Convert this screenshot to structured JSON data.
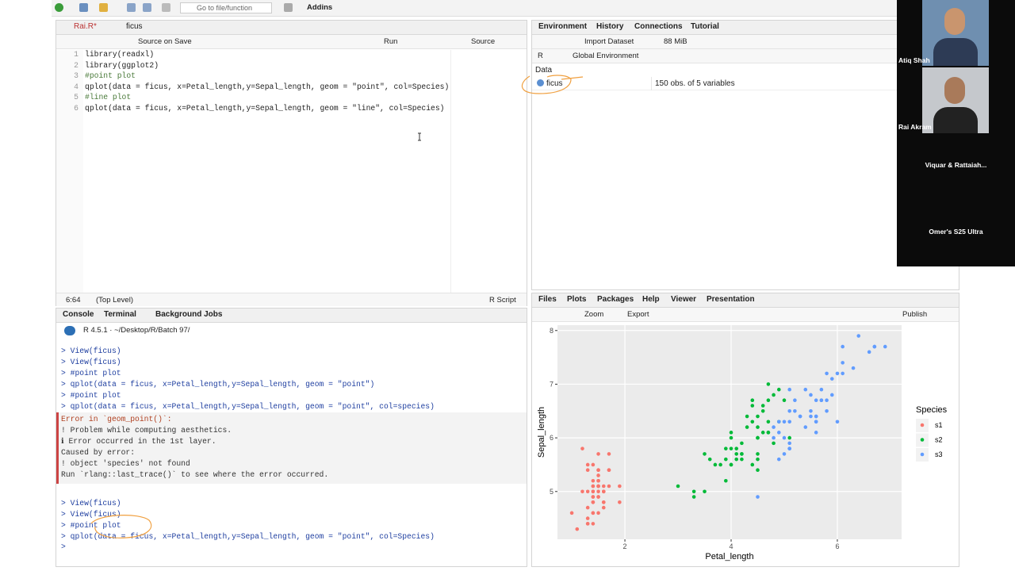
{
  "toolbar": {
    "goto": "Go to file/function",
    "addins": "Addins"
  },
  "editor": {
    "tabs": [
      "Rai.R*",
      "ficus"
    ],
    "source_on_save": "Source on Save",
    "run": "Run",
    "source": "Source",
    "line_numbers": [
      1,
      2,
      3,
      4,
      5,
      6
    ],
    "lines": [
      "library(readxl)",
      "library(ggplot2)",
      "#point plot",
      "qplot(data = ficus, x=Petal_length,y=Sepal_length, geom = \"point\", col=Species)",
      "#line plot",
      "qplot(data = ficus, x=Petal_length,y=Sepal_length, geom = \"line\", col=Species)"
    ],
    "status": {
      "position": "6:64",
      "level": "(Top Level)",
      "type": "R Script"
    }
  },
  "environment": {
    "tabs": [
      "Environment",
      "History",
      "Connections",
      "Tutorial"
    ],
    "import": "Import Dataset",
    "memory": "88 MiB",
    "language": "R",
    "scope": "Global Environment",
    "section": "Data",
    "rows": [
      {
        "name": "ficus",
        "description": "150 obs. of 5 variables"
      }
    ]
  },
  "console": {
    "tabs": [
      "Console",
      "Terminal",
      "Background Jobs"
    ],
    "path": "R 4.5.1 · ~/Desktop/R/Batch 97/",
    "history": [
      "> View(ficus)",
      "> View(ficus)",
      "> #point plot",
      "> qplot(data = ficus, x=Petal_length,y=Sepal_length, geom = \"point\")",
      "> #point plot",
      "> qplot(data = ficus, x=Petal_length,y=Sepal_length, geom = \"point\", col=species)"
    ],
    "error": [
      "Error in `geom_point()`:",
      "! Problem while computing aesthetics.",
      "ℹ Error occurred in the 1st layer.",
      "Caused by error:",
      "! object 'species' not found",
      "Run `rlang::last_trace()` to see where the error occurred."
    ],
    "recent": [
      "> View(ficus)",
      "> View(ficus)",
      "> #point plot",
      "> qplot(data = ficus, x=Petal_length,y=Sepal_length, geom = \"point\", col=Species)",
      ">"
    ]
  },
  "viewer": {
    "tabs": [
      "Files",
      "Plots",
      "Packages",
      "Help",
      "Viewer",
      "Presentation"
    ],
    "zoom": "Zoom",
    "export": "Export",
    "publish": "Publish"
  },
  "participants": [
    "Atiq Shah",
    "Rai Akram",
    "Viquar & Rattaiah...",
    "Omer's S25 Ultra"
  ],
  "chart_data": {
    "type": "scatter",
    "x_label": "Petal_length",
    "y_label": "Sepal_length",
    "legend_title": "Species",
    "grid": true,
    "xlim": [
      0.73,
      7.21
    ],
    "ylim": [
      4.11,
      8.1
    ],
    "xticks": [
      2,
      4,
      6
    ],
    "yticks": [
      5,
      6,
      7,
      8
    ],
    "series": [
      {
        "name": "s1",
        "color": "#F8766D",
        "x": [
          1.4,
          1.4,
          1.3,
          1.5,
          1.4,
          1.7,
          1.4,
          1.5,
          1.4,
          1.5,
          1.5,
          1.6,
          1.4,
          1.1,
          1.2,
          1.5,
          1.3,
          1.4,
          1.7,
          1.5,
          1.7,
          1.5,
          1.0,
          1.7,
          1.9,
          1.6,
          1.6,
          1.5,
          1.4,
          1.6,
          1.6,
          1.5,
          1.5,
          1.4,
          1.5,
          1.2,
          1.3,
          1.4,
          1.3,
          1.5,
          1.3,
          1.3,
          1.3,
          1.6,
          1.9,
          1.4,
          1.6,
          1.4,
          1.5,
          1.4
        ],
        "y": [
          5.1,
          4.9,
          4.7,
          4.6,
          5.0,
          5.4,
          4.6,
          5.0,
          4.4,
          4.9,
          5.4,
          4.8,
          4.8,
          4.3,
          5.8,
          5.7,
          5.4,
          5.1,
          5.7,
          5.1,
          5.4,
          5.1,
          4.6,
          5.1,
          4.8,
          5.0,
          5.0,
          5.2,
          5.2,
          4.7,
          4.8,
          5.4,
          5.2,
          5.5,
          4.9,
          5.0,
          5.5,
          4.9,
          4.4,
          5.1,
          5.0,
          4.5,
          4.4,
          5.0,
          5.1,
          4.8,
          5.1,
          4.6,
          5.3,
          5.0
        ]
      },
      {
        "name": "s2",
        "color": "#00BA38",
        "x": [
          4.7,
          4.5,
          4.9,
          4.0,
          4.6,
          4.5,
          4.7,
          3.3,
          4.6,
          3.9,
          3.5,
          4.2,
          4.0,
          4.7,
          3.6,
          4.4,
          4.5,
          4.1,
          4.5,
          3.9,
          4.8,
          4.0,
          4.9,
          4.7,
          4.3,
          4.4,
          4.8,
          5.0,
          4.5,
          3.5,
          3.8,
          3.7,
          3.9,
          5.1,
          4.5,
          4.5,
          4.7,
          4.4,
          4.1,
          4.0,
          4.4,
          4.6,
          4.0,
          3.3,
          4.2,
          4.2,
          4.2,
          4.3,
          3.0,
          4.1
        ],
        "y": [
          7.0,
          6.4,
          6.9,
          5.5,
          6.5,
          5.7,
          6.3,
          4.9,
          6.6,
          5.2,
          5.0,
          5.9,
          6.0,
          6.1,
          5.6,
          6.7,
          5.6,
          5.8,
          6.2,
          5.6,
          5.9,
          6.1,
          6.3,
          6.1,
          6.4,
          6.6,
          6.8,
          6.7,
          6.0,
          5.7,
          5.5,
          5.5,
          5.8,
          6.0,
          5.4,
          6.0,
          6.7,
          6.3,
          5.6,
          5.5,
          5.5,
          6.1,
          5.8,
          5.0,
          5.6,
          5.7,
          5.7,
          6.2,
          5.1,
          5.7
        ]
      },
      {
        "name": "s3",
        "color": "#619CFF",
        "x": [
          6.0,
          5.1,
          5.9,
          5.6,
          5.8,
          6.6,
          4.5,
          6.3,
          5.8,
          6.1,
          5.1,
          5.3,
          5.5,
          5.0,
          5.1,
          5.3,
          5.5,
          6.7,
          6.9,
          5.0,
          5.7,
          4.9,
          6.7,
          4.9,
          5.7,
          6.0,
          4.8,
          4.9,
          5.6,
          5.8,
          6.1,
          6.4,
          5.6,
          5.1,
          5.6,
          6.1,
          5.6,
          5.5,
          4.8,
          5.4,
          5.6,
          5.1,
          5.1,
          5.9,
          5.7,
          5.2,
          5.0,
          5.2,
          5.4,
          5.1
        ],
        "y": [
          6.3,
          5.8,
          7.1,
          6.3,
          6.5,
          7.6,
          4.9,
          7.3,
          6.7,
          7.2,
          6.5,
          6.4,
          6.8,
          5.7,
          5.8,
          6.4,
          6.5,
          7.7,
          7.7,
          6.0,
          6.9,
          5.6,
          7.7,
          6.3,
          6.7,
          7.2,
          6.2,
          6.1,
          6.4,
          7.2,
          7.4,
          7.9,
          6.4,
          6.3,
          6.1,
          7.7,
          6.3,
          6.4,
          6.0,
          6.9,
          6.7,
          6.9,
          5.8,
          6.8,
          6.7,
          6.7,
          6.3,
          6.5,
          6.2,
          5.9
        ]
      }
    ]
  }
}
